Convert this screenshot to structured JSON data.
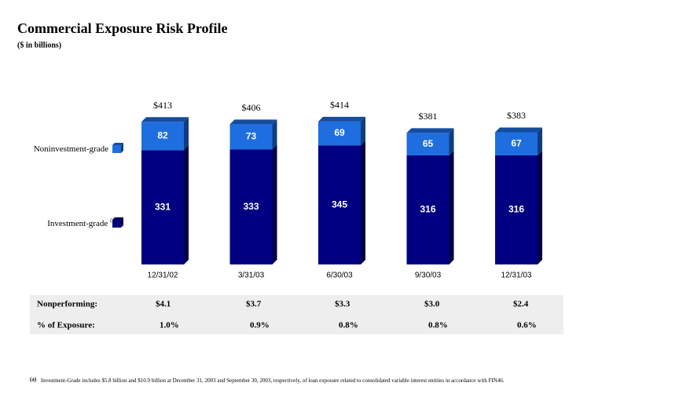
{
  "chart_data": {
    "type": "stacked-bar-3d",
    "title": "Commercial Exposure Risk Profile",
    "subtitle": "($ in billions)",
    "categories": [
      "12/31/02",
      "3/31/03",
      "6/30/03",
      "9/30/03",
      "12/31/03"
    ],
    "series": [
      {
        "name": "Investment-grade",
        "note": "(a)",
        "color": "#000080",
        "values": [
          331,
          333,
          345,
          316,
          316
        ]
      },
      {
        "name": "Noninvestment-grade",
        "color": "#1e6ee0",
        "values": [
          82,
          73,
          69,
          65,
          67
        ]
      }
    ],
    "totals": {
      "values": [
        413,
        406,
        414,
        381,
        383
      ],
      "value_labels": [
        "$413",
        "$406",
        "$414",
        "$381",
        "$383"
      ]
    }
  },
  "table": {
    "rows": [
      [
        "Nonperforming:",
        "$4.1",
        "$3.7",
        "$3.3",
        "$3.0",
        "$2.4"
      ],
      [
        "% of Exposure:",
        "1.0%",
        "0.9%",
        "0.8%",
        "0.8%",
        "0.6%"
      ]
    ]
  },
  "footnote": {
    "marker": "(a)",
    "text": "Investment-Grade includes $5.8 billion and $10.9 billion at December 31, 2003 and September 30, 2003, respectively, of loan exposure related to consolidated variable interest entities in accordance with FIN46."
  }
}
